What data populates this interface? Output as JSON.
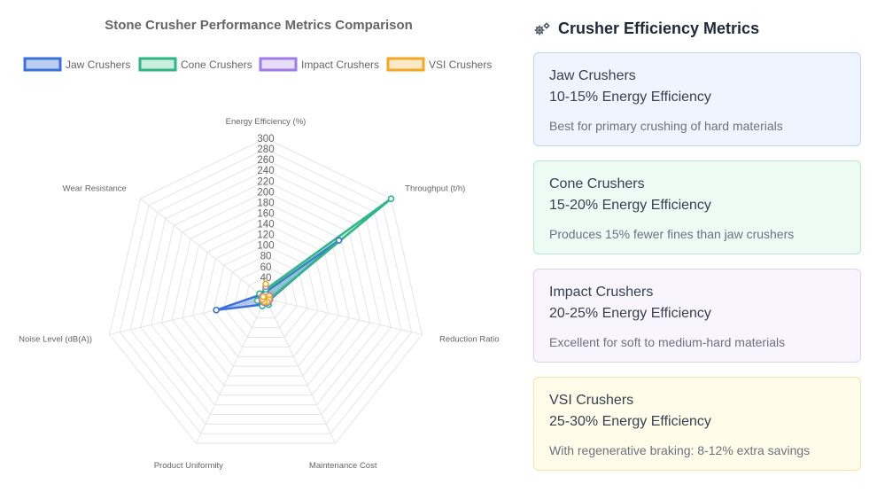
{
  "chart_data": {
    "type": "radar",
    "title": "Stone Crusher Performance Metrics Comparison",
    "axes": [
      "Energy Efficiency (%)",
      "Throughput (t/h)",
      "Reduction Ratio",
      "Maintenance Cost",
      "Product Uniformity",
      "Noise Level (dB(A))",
      "Wear Resistance"
    ],
    "r_ticks": [
      40,
      60,
      80,
      100,
      120,
      140,
      160,
      180,
      200,
      220,
      240,
      260,
      280,
      300
    ],
    "r_range": [
      0,
      300
    ],
    "grid": true,
    "legend_position": "top",
    "series": [
      {
        "name": "Jaw Crushers",
        "color": "#3b72d9",
        "fill": "rgba(59,114,217,0.35)",
        "values": [
          12.5,
          175,
          8,
          10,
          12,
          95,
          12
        ]
      },
      {
        "name": "Cone Crushers",
        "color": "#2fb686",
        "fill": "rgba(47,182,134,0.25)",
        "values": [
          17.5,
          300,
          6,
          12,
          15,
          16,
          15
        ]
      },
      {
        "name": "Impact Crushers",
        "color": "#9f7aea",
        "fill": "rgba(159,122,234,0.25)",
        "values": [
          22.5,
          10,
          8,
          8,
          8,
          8,
          8
        ]
      },
      {
        "name": "VSI Crushers",
        "color": "#f5a623",
        "fill": "rgba(245,166,35,0.25)",
        "values": [
          27.5,
          8,
          6,
          6,
          6,
          6,
          6
        ]
      }
    ]
  },
  "side_panel": {
    "title": "Crusher Efficiency Metrics",
    "title_icon": "gears-icon",
    "cards": [
      {
        "name": "Jaw Crushers",
        "efficiency": "10-15% Energy Efficiency",
        "note": "Best for primary crushing of hard materials",
        "bg": "#eff5ff",
        "border": "#bfd3f7"
      },
      {
        "name": "Cone Crushers",
        "efficiency": "15-20% Energy Efficiency",
        "note": "Produces 15% fewer fines than jaw crushers",
        "bg": "#edfbf4",
        "border": "#b7e8cf"
      },
      {
        "name": "Impact Crushers",
        "efficiency": "20-25% Energy Efficiency",
        "note": "Excellent for soft to medium-hard materials",
        "bg": "#f8f5ff",
        "border": "#ddd0f5"
      },
      {
        "name": "VSI Crushers",
        "efficiency": "25-30% Energy Efficiency",
        "note": "With regenerative braking: 8-12% extra savings",
        "bg": "#fffcea",
        "border": "#f2e5a6"
      }
    ]
  }
}
